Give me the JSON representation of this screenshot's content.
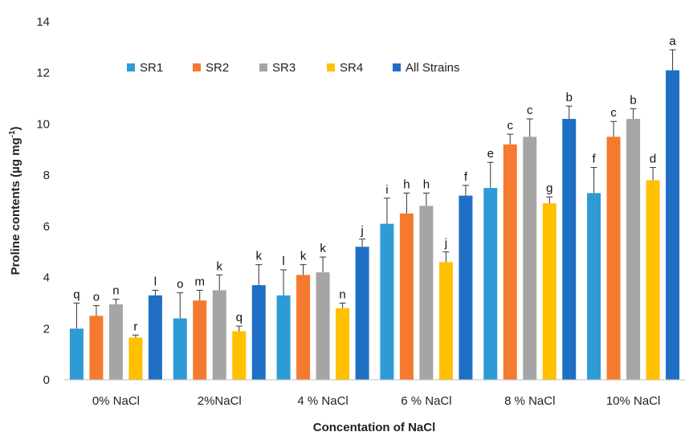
{
  "chart_data": {
    "type": "bar",
    "title": "",
    "xlabel": "Concentation of NaCl",
    "ylabel_main": "Proline contents (µg mg",
    "ylabel_sup": "-1",
    "ylabel_close": ")",
    "ylim": [
      0,
      14
    ],
    "yticks": [
      0,
      2,
      4,
      6,
      8,
      10,
      12,
      14
    ],
    "grid": false,
    "legend_position": "top-left",
    "categories": [
      "0% NaCl",
      "2%NaCl",
      "4 % NaCl",
      "6 % NaCl",
      "8 % NaCl",
      "10% NaCl"
    ],
    "series": [
      {
        "name": "SR1",
        "color": "#2E9BD6",
        "values": [
          2.0,
          2.4,
          3.3,
          6.1,
          7.5,
          7.3
        ],
        "errors": [
          1.0,
          1.0,
          1.0,
          1.0,
          1.0,
          1.0
        ],
        "labels": [
          "q",
          "o",
          "l",
          "i",
          "e",
          "f"
        ]
      },
      {
        "name": "SR2",
        "color": "#F47A30",
        "values": [
          2.5,
          3.1,
          4.1,
          6.5,
          9.2,
          9.5
        ],
        "errors": [
          0.4,
          0.4,
          0.4,
          0.8,
          0.4,
          0.6
        ],
        "labels": [
          "o",
          "m",
          "k",
          "h",
          "c",
          "c"
        ]
      },
      {
        "name": "SR3",
        "color": "#A5A5A5",
        "values": [
          2.95,
          3.5,
          4.2,
          6.8,
          9.5,
          10.2
        ],
        "errors": [
          0.2,
          0.6,
          0.6,
          0.5,
          0.7,
          0.4
        ],
        "labels": [
          "n",
          "k",
          "k",
          "h",
          "c",
          "b"
        ]
      },
      {
        "name": "SR4",
        "color": "#FFC000",
        "values": [
          1.65,
          1.9,
          2.8,
          4.6,
          6.9,
          7.8
        ],
        "errors": [
          0.1,
          0.2,
          0.2,
          0.4,
          0.25,
          0.5
        ],
        "labels": [
          "r",
          "q",
          "n",
          "j",
          "g",
          "d"
        ]
      },
      {
        "name": "All Strains",
        "color": "#1F6FC5",
        "values": [
          3.3,
          3.7,
          5.2,
          7.2,
          10.2,
          12.1
        ],
        "errors": [
          0.2,
          0.8,
          0.3,
          0.4,
          0.5,
          0.8
        ],
        "labels": [
          "l",
          "k",
          "j",
          "f",
          "b",
          "a"
        ]
      }
    ]
  }
}
